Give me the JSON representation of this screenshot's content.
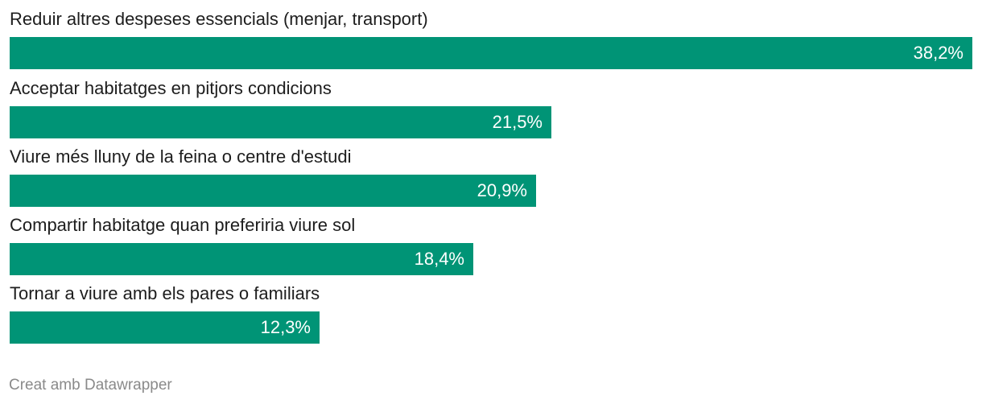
{
  "chart_data": {
    "type": "bar",
    "orientation": "horizontal",
    "categories": [
      "Reduir altres despeses essencials (menjar, transport)",
      "Acceptar habitatges en pitjors condicions",
      "Viure més lluny de la feina o centre d'estudi",
      "Compartir habitatge quan preferiria viure sol",
      "Tornar a viure amb els pares o familiars"
    ],
    "values": [
      38.2,
      21.5,
      20.9,
      18.4,
      12.3
    ],
    "value_labels": [
      "38,2%",
      "21,5%",
      "20,9%",
      "18,4%",
      "12,3%"
    ],
    "xlim": [
      0,
      38.2
    ],
    "bar_color": "#009476",
    "title": "",
    "xlabel": "",
    "ylabel": ""
  },
  "footer": {
    "credit": "Creat amb Datawrapper"
  }
}
